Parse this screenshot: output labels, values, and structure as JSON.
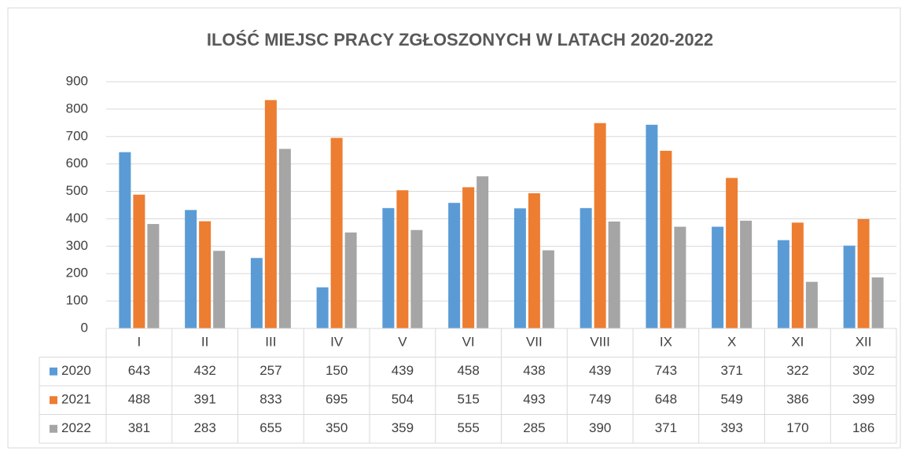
{
  "chart_data": {
    "type": "bar",
    "title": "ILOŚĆ MIEJSC PRACY ZGŁOSZONYCH W LATACH 2020-2022",
    "categories": [
      "I",
      "II",
      "III",
      "IV",
      "V",
      "VI",
      "VII",
      "VIII",
      "IX",
      "X",
      "XI",
      "XII"
    ],
    "series": [
      {
        "name": "2020",
        "color": "#5b9bd5",
        "values": [
          643,
          432,
          257,
          150,
          439,
          458,
          438,
          439,
          743,
          371,
          322,
          302
        ]
      },
      {
        "name": "2021",
        "color": "#ed7d31",
        "values": [
          488,
          391,
          833,
          695,
          504,
          515,
          493,
          749,
          648,
          549,
          386,
          399
        ]
      },
      {
        "name": "2022",
        "color": "#a5a5a5",
        "values": [
          381,
          283,
          655,
          350,
          359,
          555,
          285,
          390,
          371,
          393,
          170,
          186
        ]
      }
    ],
    "ylim": [
      0,
      900
    ],
    "yticks": [
      0,
      100,
      200,
      300,
      400,
      500,
      600,
      700,
      800,
      900
    ],
    "grid": true
  }
}
